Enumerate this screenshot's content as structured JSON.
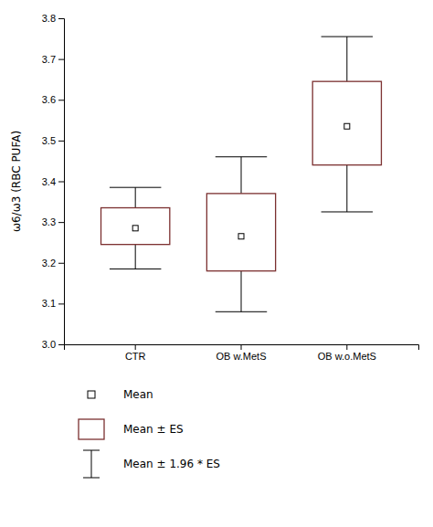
{
  "chart_data": {
    "type": "box",
    "categories": [
      "CTR",
      "OB w.MetS",
      "OB w.o.MetS"
    ],
    "means": [
      3.285,
      3.265,
      3.535
    ],
    "box_top": [
      3.335,
      3.37,
      3.645
    ],
    "box_bottom": [
      3.245,
      3.18,
      3.44
    ],
    "whisker_top": [
      3.385,
      3.46,
      3.755
    ],
    "whisker_bottom": [
      3.185,
      3.08,
      3.325
    ],
    "color": "#7B3030",
    "ylabel": "ω6/ω3 (RBC PUFA)",
    "ylim": [
      3.0,
      3.8
    ],
    "yticks": [
      {
        "value": 3.0,
        "label": "3.0"
      },
      3.1,
      3.2,
      3.3,
      3.4,
      3.5,
      3.6,
      3.7,
      3.8
    ],
    "legend_items": [
      "Mean",
      "Mean ± ES",
      "Mean ± 1.96 * ES"
    ]
  }
}
